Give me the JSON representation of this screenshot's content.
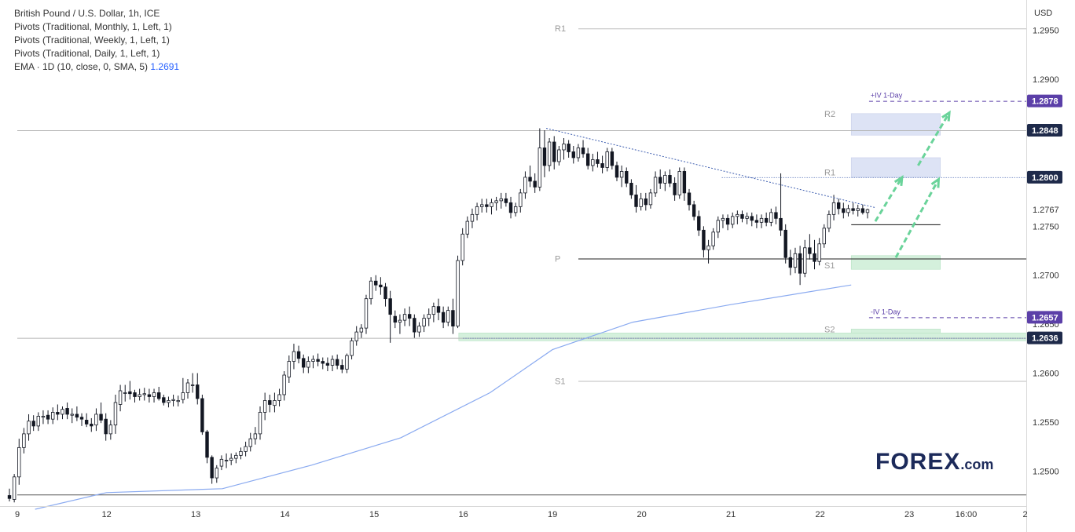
{
  "legend": {
    "symbol": "British Pound / U.S. Dollar, 1h, ICE",
    "pivots": [
      "Pivots (Traditional, Monthly, 1, Left, 1)",
      "Pivots (Traditional, Weekly, 1, Left, 1)",
      "Pivots (Traditional, Daily, 1, Left, 1)"
    ],
    "ema_label": "EMA · 1D (10, close, 0, SMA, 5)",
    "ema_value": "1.2691"
  },
  "currency": "USD",
  "logo": {
    "brand": "FOREX",
    "tld": ".com"
  },
  "colors": {
    "up": "#ffffff",
    "down": "#131722",
    "candle_border": "#131722",
    "ema": "#8aaaf0",
    "trendline": "#3f5fb0",
    "arrow": "#6ad39a",
    "tag_dark": "#1e2a4a",
    "tag_purple": "#5b3fa8",
    "zone_blue": "#dde3f5",
    "zone_green": "#d4f0dc"
  },
  "chart_data": {
    "type": "candlestick",
    "symbol": "GBPUSD",
    "timeframe": "1h",
    "ylim": [
      1.2465,
      1.2965
    ],
    "y_ticks": [
      "1.2950",
      "1.2900",
      "1.2800",
      "1.2750",
      "1.2700",
      "1.2650",
      "1.2600",
      "1.2550",
      "1.2500"
    ],
    "x_ticks": [
      {
        "label": "9",
        "pos": 0.0
      },
      {
        "label": "12",
        "pos": 1.0
      },
      {
        "label": "13",
        "pos": 2.0
      },
      {
        "label": "14",
        "pos": 3.0
      },
      {
        "label": "15",
        "pos": 4.0
      },
      {
        "label": "16",
        "pos": 5.0
      },
      {
        "label": "19",
        "pos": 6.0
      },
      {
        "label": "20",
        "pos": 7.0
      },
      {
        "label": "21",
        "pos": 8.0
      },
      {
        "label": "22",
        "pos": 9.0
      },
      {
        "label": "23",
        "pos": 10.0
      },
      {
        "label": "16:00",
        "pos": 10.65
      },
      {
        "label": "2",
        "pos": 11.3
      }
    ],
    "price_tags": [
      {
        "label": "1.2878",
        "value": 1.2878,
        "style": "purple"
      },
      {
        "label": "1.2848",
        "value": 1.2848,
        "style": "dark"
      },
      {
        "label": "1.2800",
        "value": 1.28,
        "style": "dark"
      },
      {
        "label": "1.2767",
        "value": 1.2767,
        "style": "plain"
      },
      {
        "label": "1.2657",
        "value": 1.2657,
        "style": "purple"
      },
      {
        "label": "1.2636",
        "value": 1.2636,
        "style": "dark"
      }
    ],
    "horizontal_levels": [
      {
        "value": 1.2848,
        "from": 0.0,
        "to": 11.4,
        "color": "#b5b5b5"
      },
      {
        "value": 1.2636,
        "from": 0.0,
        "to": 11.4,
        "color": "#b5b5b5"
      },
      {
        "value": 1.2476,
        "from": 0.0,
        "to": 11.4,
        "color": "#555555"
      }
    ],
    "weekly_pivots": [
      {
        "label": "R1",
        "value": 1.2952,
        "from": 6.0,
        "to": 11.4
      },
      {
        "label": "P",
        "value": 1.2717,
        "from": 6.0,
        "to": 11.4,
        "strong": true
      },
      {
        "label": "S1",
        "value": 1.2592,
        "from": 6.0,
        "to": 11.4
      }
    ],
    "daily_pivots": [
      {
        "label": "R2",
        "value": 1.2865,
        "from": 9.0,
        "to": 10.35
      },
      {
        "label": "R1",
        "value": 1.2805,
        "from": 9.0,
        "to": 10.35
      },
      {
        "label": "S1",
        "value": 1.271,
        "from": 9.0,
        "to": 10.35
      },
      {
        "label": "S2",
        "value": 1.2645,
        "from": 9.0,
        "to": 10.35
      }
    ],
    "zones": [
      {
        "from_y": 1.2865,
        "to_y": 1.2843,
        "from": 9.35,
        "to": 10.35,
        "color": "blue"
      },
      {
        "from_y": 1.282,
        "to_y": 1.28,
        "from": 9.35,
        "to": 10.35,
        "color": "blue"
      },
      {
        "from_y": 1.272,
        "to_y": 1.2706,
        "from": 9.35,
        "to": 10.35,
        "color": "green"
      },
      {
        "from_y": 1.2645,
        "to_y": 1.2636,
        "from": 9.35,
        "to": 10.35,
        "color": "green"
      },
      {
        "from_y": 1.2641,
        "to_y": 1.2633,
        "from": 4.95,
        "to": 11.4,
        "color": "green"
      }
    ],
    "iv_lines": [
      {
        "label": "+IV 1-Day",
        "value": 1.2878,
        "from": 9.55,
        "to": 11.4
      },
      {
        "label": "-IV 1-Day",
        "value": 1.2657,
        "from": 9.55,
        "to": 11.4
      }
    ],
    "dotted_levels": [
      {
        "value": 1.28,
        "from": 7.9,
        "to": 11.4
      },
      {
        "value": 1.2636,
        "from": 5.0,
        "to": 11.4
      }
    ],
    "trendline": {
      "x": [
        5.93,
        9.62
      ],
      "y": [
        1.285,
        1.2769
      ]
    },
    "current_level_line": {
      "value": 1.2752,
      "from": 9.35,
      "to": 10.35
    },
    "ema": {
      "x": [
        0.2,
        1.0,
        2.3,
        3.3,
        4.3,
        5.3,
        6.0,
        6.9,
        8.0,
        9.35
      ],
      "y": [
        1.2461,
        1.2478,
        1.2482,
        1.2506,
        1.2534,
        1.258,
        1.2624,
        1.2652,
        1.267,
        1.269
      ]
    },
    "arrows": [
      {
        "x": [
          9.62,
          9.92
        ],
        "y": [
          1.2755,
          1.28
        ]
      },
      {
        "x": [
          9.85,
          10.33
        ],
        "y": [
          1.2718,
          1.2798
        ]
      },
      {
        "x": [
          10.1,
          10.45
        ],
        "y": [
          1.2812,
          1.2866
        ]
      }
    ],
    "candles": [
      [
        1.2475,
        1.2482,
        1.2469,
        1.2472
      ],
      [
        1.2471,
        1.2497,
        1.2468,
        1.2494
      ],
      [
        1.2494,
        1.2533,
        1.2486,
        1.2524
      ],
      [
        1.2524,
        1.2544,
        1.2518,
        1.2538
      ],
      [
        1.2538,
        1.2558,
        1.2531,
        1.2551
      ],
      [
        1.2551,
        1.2557,
        1.2541,
        1.2546
      ],
      [
        1.2546,
        1.256,
        1.2541,
        1.2556
      ],
      [
        1.2555,
        1.2562,
        1.2548,
        1.2556
      ],
      [
        1.2557,
        1.2562,
        1.2548,
        1.2553
      ],
      [
        1.2553,
        1.2565,
        1.2548,
        1.256
      ],
      [
        1.256,
        1.2568,
        1.2552,
        1.2558
      ],
      [
        1.2558,
        1.2566,
        1.2553,
        1.2563
      ],
      [
        1.2564,
        1.257,
        1.2553,
        1.2558
      ],
      [
        1.2557,
        1.2564,
        1.2549,
        1.2558
      ],
      [
        1.2558,
        1.2566,
        1.2551,
        1.2555
      ],
      [
        1.2555,
        1.2559,
        1.2546,
        1.2553
      ],
      [
        1.2552,
        1.2559,
        1.2545,
        1.2548
      ],
      [
        1.2548,
        1.2554,
        1.254,
        1.2546
      ],
      [
        1.2547,
        1.2564,
        1.2541,
        1.2558
      ],
      [
        1.2558,
        1.257,
        1.2549,
        1.2552
      ],
      [
        1.2553,
        1.2559,
        1.2531,
        1.2538
      ],
      [
        1.2538,
        1.2552,
        1.2532,
        1.2547
      ],
      [
        1.2547,
        1.2578,
        1.2538,
        1.257
      ],
      [
        1.2568,
        1.2588,
        1.2561,
        1.2582
      ],
      [
        1.258,
        1.2588,
        1.2571,
        1.258
      ],
      [
        1.2581,
        1.2592,
        1.2573,
        1.2579
      ],
      [
        1.258,
        1.2583,
        1.257,
        1.2576
      ],
      [
        1.2576,
        1.2584,
        1.2572,
        1.2578
      ],
      [
        1.2578,
        1.2585,
        1.2572,
        1.2579
      ],
      [
        1.2578,
        1.2584,
        1.257,
        1.2576
      ],
      [
        1.2576,
        1.2584,
        1.257,
        1.258
      ],
      [
        1.258,
        1.2586,
        1.2572,
        1.2574
      ],
      [
        1.2575,
        1.2578,
        1.2567,
        1.257
      ],
      [
        1.257,
        1.2576,
        1.2565,
        1.2572
      ],
      [
        1.2572,
        1.2578,
        1.2566,
        1.2573
      ],
      [
        1.2571,
        1.2577,
        1.2566,
        1.2572
      ],
      [
        1.2573,
        1.2595,
        1.2569,
        1.258
      ],
      [
        1.258,
        1.2594,
        1.2574,
        1.259
      ],
      [
        1.2588,
        1.26,
        1.258,
        1.2588
      ],
      [
        1.2588,
        1.26,
        1.2568,
        1.2574
      ],
      [
        1.2574,
        1.2578,
        1.2537,
        1.254
      ],
      [
        1.254,
        1.2542,
        1.2508,
        1.2514
      ],
      [
        1.2514,
        1.2516,
        1.2487,
        1.2493
      ],
      [
        1.2493,
        1.2506,
        1.2488,
        1.2503
      ],
      [
        1.2505,
        1.2516,
        1.2501,
        1.2512
      ],
      [
        1.2511,
        1.2518,
        1.2503,
        1.2511
      ],
      [
        1.2511,
        1.2518,
        1.2506,
        1.2513
      ],
      [
        1.2513,
        1.2519,
        1.2508,
        1.2516
      ],
      [
        1.2516,
        1.2524,
        1.2512,
        1.252
      ],
      [
        1.252,
        1.253,
        1.2515,
        1.2525
      ],
      [
        1.2525,
        1.2539,
        1.252,
        1.2533
      ],
      [
        1.2533,
        1.2545,
        1.2527,
        1.2538
      ],
      [
        1.2538,
        1.2566,
        1.2532,
        1.256
      ],
      [
        1.256,
        1.258,
        1.2552,
        1.2572
      ],
      [
        1.2572,
        1.2578,
        1.256,
        1.2568
      ],
      [
        1.2567,
        1.258,
        1.256,
        1.2572
      ],
      [
        1.2572,
        1.2584,
        1.2566,
        1.2578
      ],
      [
        1.2578,
        1.2602,
        1.2572,
        1.2598
      ],
      [
        1.2596,
        1.2618,
        1.259,
        1.2612
      ],
      [
        1.2612,
        1.263,
        1.2604,
        1.2622
      ],
      [
        1.2622,
        1.2628,
        1.261,
        1.2615
      ],
      [
        1.2615,
        1.2619,
        1.26,
        1.2606
      ],
      [
        1.2606,
        1.2617,
        1.26,
        1.2612
      ],
      [
        1.2612,
        1.2618,
        1.2605,
        1.2614
      ],
      [
        1.2614,
        1.262,
        1.2607,
        1.2612
      ],
      [
        1.2612,
        1.2616,
        1.2604,
        1.261
      ],
      [
        1.261,
        1.2616,
        1.2602,
        1.2608
      ],
      [
        1.2608,
        1.2618,
        1.2602,
        1.2614
      ],
      [
        1.2614,
        1.2619,
        1.2604,
        1.2608
      ],
      [
        1.2608,
        1.2614,
        1.26,
        1.2604
      ],
      [
        1.2604,
        1.262,
        1.26,
        1.2618
      ],
      [
        1.2618,
        1.2636,
        1.2614,
        1.2633
      ],
      [
        1.2633,
        1.2648,
        1.2628,
        1.2642
      ],
      [
        1.2642,
        1.265,
        1.2636,
        1.2646
      ],
      [
        1.2646,
        1.268,
        1.264,
        1.2676
      ],
      [
        1.2676,
        1.2698,
        1.267,
        1.2694
      ],
      [
        1.2694,
        1.27,
        1.2684,
        1.269
      ],
      [
        1.269,
        1.2698,
        1.268,
        1.2688
      ],
      [
        1.2688,
        1.2692,
        1.2668,
        1.2676
      ],
      [
        1.2676,
        1.2684,
        1.2631,
        1.266
      ],
      [
        1.2658,
        1.2664,
        1.2646,
        1.2652
      ],
      [
        1.2652,
        1.266,
        1.264,
        1.2654
      ],
      [
        1.2654,
        1.2666,
        1.2648,
        1.266
      ],
      [
        1.266,
        1.2668,
        1.2648,
        1.2656
      ],
      [
        1.2656,
        1.266,
        1.2636,
        1.2642
      ],
      [
        1.2642,
        1.2652,
        1.2637,
        1.2648
      ],
      [
        1.2648,
        1.266,
        1.2642,
        1.2656
      ],
      [
        1.2656,
        1.2666,
        1.2648,
        1.266
      ],
      [
        1.266,
        1.2672,
        1.2652,
        1.2668
      ],
      [
        1.2668,
        1.2676,
        1.2654,
        1.2662
      ],
      [
        1.2662,
        1.2668,
        1.2646,
        1.2652
      ],
      [
        1.2652,
        1.2668,
        1.2648,
        1.2664
      ],
      [
        1.2664,
        1.2676,
        1.264,
        1.2648
      ],
      [
        1.2648,
        1.272,
        1.2646,
        1.2715
      ],
      [
        1.2715,
        1.2748,
        1.271,
        1.2742
      ],
      [
        1.2742,
        1.276,
        1.2738,
        1.2755
      ],
      [
        1.2755,
        1.2768,
        1.2748,
        1.2762
      ],
      [
        1.2762,
        1.2774,
        1.2756,
        1.277
      ],
      [
        1.277,
        1.2778,
        1.2764,
        1.2772
      ],
      [
        1.2772,
        1.2778,
        1.2764,
        1.277
      ],
      [
        1.277,
        1.2778,
        1.2762,
        1.2774
      ],
      [
        1.2774,
        1.278,
        1.2766,
        1.2776
      ],
      [
        1.2776,
        1.2784,
        1.2768,
        1.2778
      ],
      [
        1.2778,
        1.2784,
        1.277,
        1.2774
      ],
      [
        1.2774,
        1.278,
        1.2758,
        1.2764
      ],
      [
        1.2764,
        1.2774,
        1.276,
        1.277
      ],
      [
        1.277,
        1.2788,
        1.2764,
        1.2784
      ],
      [
        1.2784,
        1.2806,
        1.2778,
        1.28
      ],
      [
        1.28,
        1.2812,
        1.279,
        1.2796
      ],
      [
        1.2796,
        1.2804,
        1.2784,
        1.279
      ],
      [
        1.279,
        1.285,
        1.2786,
        1.283
      ],
      [
        1.283,
        1.2848,
        1.28,
        1.2812
      ],
      [
        1.2812,
        1.284,
        1.2806,
        1.2836
      ],
      [
        1.2836,
        1.2842,
        1.2808,
        1.2816
      ],
      [
        1.2816,
        1.2832,
        1.2812,
        1.2828
      ],
      [
        1.2828,
        1.284,
        1.2818,
        1.2834
      ],
      [
        1.2834,
        1.2838,
        1.282,
        1.2826
      ],
      [
        1.2826,
        1.2832,
        1.2814,
        1.282
      ],
      [
        1.282,
        1.2834,
        1.2816,
        1.283
      ],
      [
        1.283,
        1.2838,
        1.282,
        1.2824
      ],
      [
        1.2824,
        1.283,
        1.2808,
        1.2812
      ],
      [
        1.2812,
        1.2824,
        1.2806,
        1.2818
      ],
      [
        1.2818,
        1.2826,
        1.281,
        1.2814
      ],
      [
        1.2814,
        1.2822,
        1.2804,
        1.281
      ],
      [
        1.281,
        1.283,
        1.2806,
        1.2826
      ],
      [
        1.2826,
        1.283,
        1.2808,
        1.2812
      ],
      [
        1.2812,
        1.2816,
        1.2796,
        1.28
      ],
      [
        1.28,
        1.2812,
        1.279,
        1.2806
      ],
      [
        1.2806,
        1.281,
        1.279,
        1.2794
      ],
      [
        1.2794,
        1.2798,
        1.2778,
        1.2782
      ],
      [
        1.2782,
        1.2792,
        1.2764,
        1.277
      ],
      [
        1.277,
        1.2784,
        1.2766,
        1.2778
      ],
      [
        1.2778,
        1.2784,
        1.2766,
        1.2772
      ],
      [
        1.2772,
        1.2788,
        1.2768,
        1.2784
      ],
      [
        1.2784,
        1.2806,
        1.278,
        1.28
      ],
      [
        1.28,
        1.2808,
        1.2788,
        1.2794
      ],
      [
        1.2794,
        1.2806,
        1.2786,
        1.2802
      ],
      [
        1.2802,
        1.2808,
        1.279,
        1.2794
      ],
      [
        1.2794,
        1.28,
        1.2776,
        1.2782
      ],
      [
        1.2782,
        1.281,
        1.2778,
        1.2806
      ],
      [
        1.2806,
        1.281,
        1.2776,
        1.2784
      ],
      [
        1.2784,
        1.2788,
        1.2766,
        1.2772
      ],
      [
        1.2772,
        1.2776,
        1.2756,
        1.276
      ],
      [
        1.276,
        1.2766,
        1.274,
        1.2746
      ],
      [
        1.2746,
        1.275,
        1.2718,
        1.2726
      ],
      [
        1.2726,
        1.2736,
        1.2712,
        1.273
      ],
      [
        1.273,
        1.2748,
        1.2726,
        1.2744
      ],
      [
        1.2744,
        1.276,
        1.2738,
        1.2756
      ],
      [
        1.2756,
        1.2762,
        1.2748,
        1.2758
      ],
      [
        1.2758,
        1.2762,
        1.2746,
        1.2752
      ],
      [
        1.2752,
        1.2764,
        1.2748,
        1.276
      ],
      [
        1.276,
        1.2766,
        1.2752,
        1.2762
      ],
      [
        1.2762,
        1.2766,
        1.2754,
        1.2758
      ],
      [
        1.2758,
        1.2764,
        1.2752,
        1.276
      ],
      [
        1.276,
        1.2764,
        1.275,
        1.2756
      ],
      [
        1.2756,
        1.2762,
        1.2748,
        1.2754
      ],
      [
        1.2754,
        1.2762,
        1.2748,
        1.2758
      ],
      [
        1.2758,
        1.2764,
        1.275,
        1.2754
      ],
      [
        1.2754,
        1.2768,
        1.275,
        1.2764
      ],
      [
        1.2764,
        1.277,
        1.2752,
        1.2758
      ],
      [
        1.2758,
        1.2804,
        1.274,
        1.2746
      ],
      [
        1.2746,
        1.2752,
        1.2712,
        1.2718
      ],
      [
        1.2718,
        1.2726,
        1.27,
        1.2708
      ],
      [
        1.2708,
        1.2728,
        1.2702,
        1.2722
      ],
      [
        1.2722,
        1.273,
        1.269,
        1.2702
      ],
      [
        1.2702,
        1.2736,
        1.2698,
        1.2728
      ],
      [
        1.2728,
        1.2742,
        1.2716,
        1.2722
      ],
      [
        1.2722,
        1.2736,
        1.2706,
        1.2714
      ],
      [
        1.2714,
        1.2738,
        1.271,
        1.2732
      ],
      [
        1.2732,
        1.2752,
        1.2728,
        1.2748
      ],
      [
        1.2748,
        1.2766,
        1.2744,
        1.2762
      ],
      [
        1.2762,
        1.2782,
        1.2756,
        1.2774
      ],
      [
        1.2774,
        1.2778,
        1.2762,
        1.2768
      ],
      [
        1.2768,
        1.2774,
        1.2758,
        1.2764
      ],
      [
        1.2764,
        1.2772,
        1.276,
        1.2768
      ],
      [
        1.2768,
        1.2774,
        1.2762,
        1.2766
      ],
      [
        1.2766,
        1.2772,
        1.276,
        1.2768
      ],
      [
        1.2768,
        1.2772,
        1.2762,
        1.2764
      ],
      [
        1.2764,
        1.2768,
        1.2758,
        1.2767
      ]
    ]
  }
}
